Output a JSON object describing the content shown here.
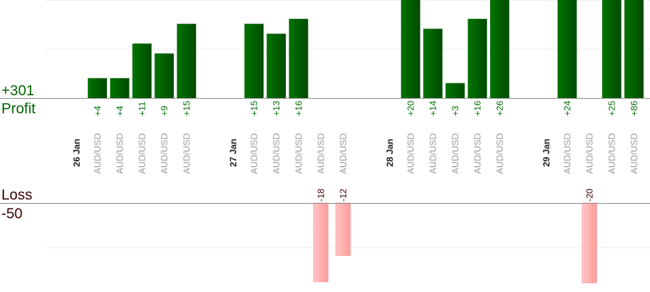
{
  "chart_data": {
    "type": "bar",
    "title": "",
    "profit_total_label": "+301",
    "profit_label": "Profit",
    "loss_label": "Loss",
    "loss_total_label": "-50",
    "profit_color": "#006400",
    "loss_color": "#ff9f9f",
    "items": [
      {
        "kind": "date",
        "label": "26 Jan"
      },
      {
        "kind": "trade",
        "symbol": "AUD/USD",
        "value": 4,
        "label": "+4"
      },
      {
        "kind": "trade",
        "symbol": "AUD/USD",
        "value": 4,
        "label": "+4"
      },
      {
        "kind": "trade",
        "symbol": "AUD/USD",
        "value": 11,
        "label": "+11"
      },
      {
        "kind": "trade",
        "symbol": "AUD/USD",
        "value": 9,
        "label": "+9"
      },
      {
        "kind": "trade",
        "symbol": "AUD/USD",
        "value": 15,
        "label": "+15"
      },
      {
        "kind": "date",
        "label": "27 Jan"
      },
      {
        "kind": "trade",
        "symbol": "AUD/USD",
        "value": 15,
        "label": "+15"
      },
      {
        "kind": "trade",
        "symbol": "AUD/USD",
        "value": 13,
        "label": "+13"
      },
      {
        "kind": "trade",
        "symbol": "AUD/USD",
        "value": 16,
        "label": "+16"
      },
      {
        "kind": "trade",
        "symbol": "AUD/USD",
        "value": -18,
        "label": "-18"
      },
      {
        "kind": "trade",
        "symbol": "AUD/USD",
        "value": -12,
        "label": "-12"
      },
      {
        "kind": "date",
        "label": "28 Jan"
      },
      {
        "kind": "trade",
        "symbol": "AUD/USD",
        "value": 20,
        "label": "+20"
      },
      {
        "kind": "trade",
        "symbol": "AUD/USD",
        "value": 14,
        "label": "+14"
      },
      {
        "kind": "trade",
        "symbol": "AUD/USD",
        "value": 3,
        "label": "+3"
      },
      {
        "kind": "trade",
        "symbol": "AUD/USD",
        "value": 16,
        "label": "+16"
      },
      {
        "kind": "trade",
        "symbol": "AUD/USD",
        "value": 26,
        "label": "+26"
      },
      {
        "kind": "date",
        "label": "29 Jan"
      },
      {
        "kind": "trade",
        "symbol": "AUD/USD",
        "value": 24,
        "label": "+24"
      },
      {
        "kind": "trade",
        "symbol": "AUD/USD",
        "value": -20,
        "label": "-20"
      },
      {
        "kind": "trade",
        "symbol": "AUD/USD",
        "value": 25,
        "label": "+25"
      },
      {
        "kind": "trade",
        "symbol": "AUD/USD",
        "value": 86,
        "label": "+86"
      }
    ]
  }
}
